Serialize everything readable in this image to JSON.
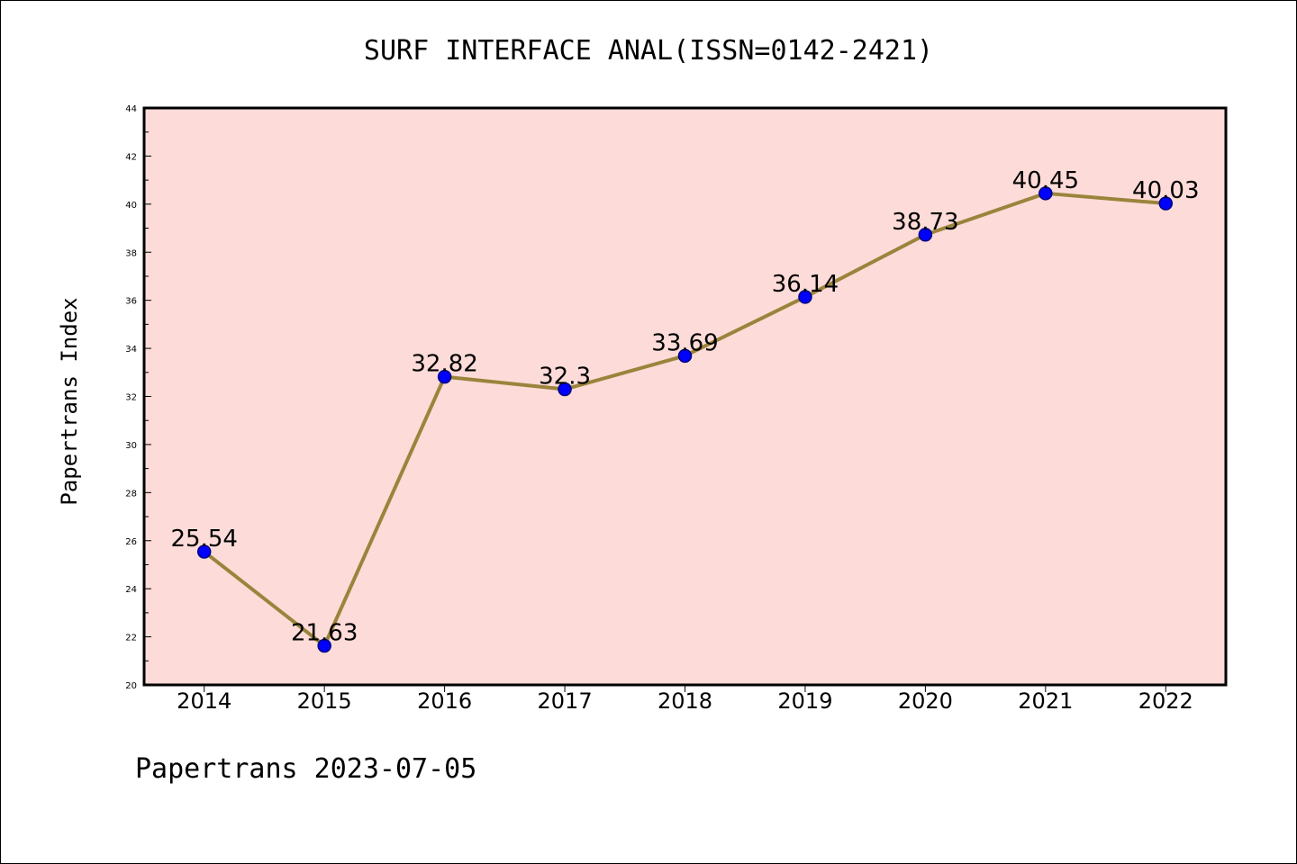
{
  "chart_data": {
    "type": "line",
    "title": "SURF INTERFACE ANAL(ISSN=0142-2421)",
    "xlabel": "",
    "ylabel": "Papertrans Index",
    "footer": "Papertrans 2023-07-05",
    "categories": [
      "2014",
      "2015",
      "2016",
      "2017",
      "2018",
      "2019",
      "2020",
      "2021",
      "2022"
    ],
    "series": [
      {
        "values": [
          25.54,
          21.63,
          32.82,
          32.3,
          33.69,
          36.14,
          38.73,
          40.45,
          40.03
        ],
        "labels": [
          "25.54",
          "21.63",
          "32.82",
          "32.3",
          "33.69",
          "36.14",
          "38.73",
          "40.45",
          "40.03"
        ]
      }
    ],
    "ylim": [
      20,
      44
    ],
    "yticks": [
      "20",
      "22",
      "24",
      "26",
      "28",
      "30",
      "32",
      "34",
      "36",
      "38",
      "40",
      "42",
      "44"
    ],
    "grid": false,
    "colors": {
      "plot_background": "#fddbd8",
      "line": "#9a843c",
      "marker": "#0000ff",
      "marker_edge": "#000080"
    }
  }
}
